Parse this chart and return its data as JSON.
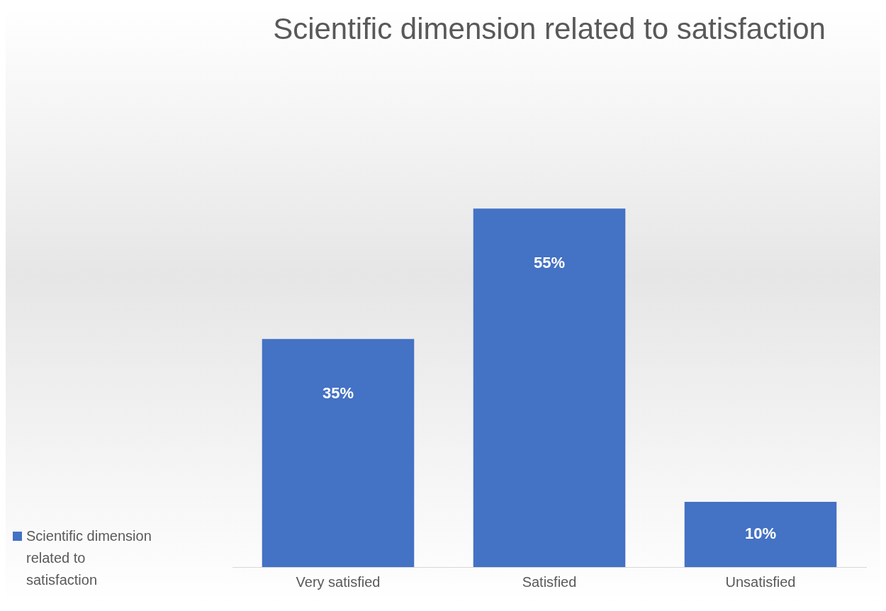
{
  "chart_data": {
    "type": "bar",
    "title": "Scientific dimension related to satisfaction",
    "categories": [
      "Very satisfied",
      "Satisfied",
      "Unsatisfied"
    ],
    "series": [
      {
        "name": "Scientific dimension related to satisfaction",
        "color": "#4472c4",
        "values": [
          35,
          55,
          10
        ],
        "value_labels": [
          "35%",
          "55%",
          "10%"
        ]
      }
    ],
    "legend": "bottom left",
    "grid": false,
    "tick_labels": "x"
  }
}
